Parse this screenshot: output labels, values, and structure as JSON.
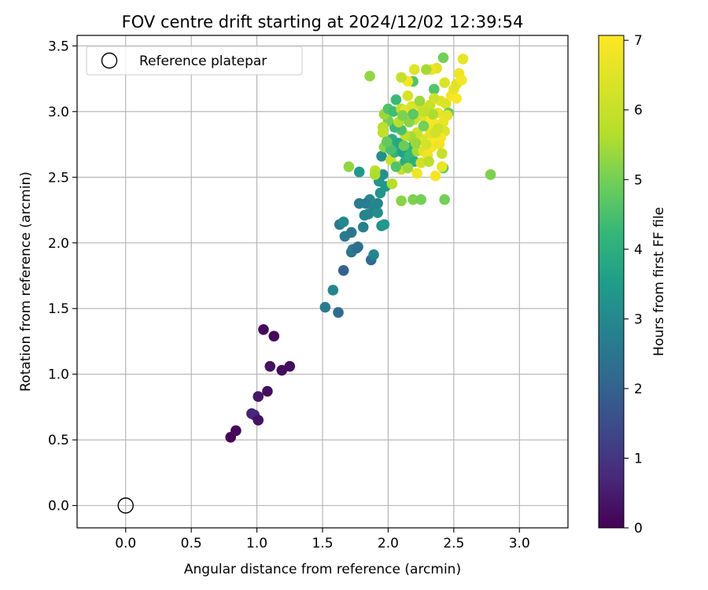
{
  "chart_data": {
    "type": "scatter",
    "title": "FOV centre drift starting at 2024/12/02 12:39:54",
    "xlabel": "Angular distance from reference (arcmin)",
    "ylabel": "Rotation from reference (arcmin)",
    "xlim": [
      -0.37,
      3.37
    ],
    "ylim": [
      -0.17,
      3.58
    ],
    "xticks": [
      "0.0",
      "0.5",
      "1.0",
      "1.5",
      "2.0",
      "2.5",
      "3.0"
    ],
    "yticks": [
      "0.0",
      "0.5",
      "1.0",
      "1.5",
      "2.0",
      "2.5",
      "3.0",
      "3.5"
    ],
    "grid": true,
    "legend": {
      "placement": "upper-left",
      "label": "Reference platepar"
    },
    "reference_point": {
      "x": 0.0,
      "y": 0.0
    },
    "colorbar": {
      "label": "Hours from first FF file",
      "colormap": "viridis",
      "range": [
        0,
        7.07
      ],
      "ticks": [
        "0",
        "1",
        "2",
        "3",
        "4",
        "5",
        "6",
        "7"
      ]
    },
    "points": [
      {
        "x": 0.8,
        "y": 0.52,
        "c": 0.05
      },
      {
        "x": 0.84,
        "y": 0.57,
        "c": 0.1
      },
      {
        "x": 0.96,
        "y": 0.7,
        "c": 0.6
      },
      {
        "x": 0.98,
        "y": 0.69,
        "c": 0.7
      },
      {
        "x": 1.01,
        "y": 0.65,
        "c": 0.3
      },
      {
        "x": 1.01,
        "y": 0.83,
        "c": 0.4
      },
      {
        "x": 1.08,
        "y": 0.87,
        "c": 0.2
      },
      {
        "x": 1.1,
        "y": 1.06,
        "c": 0.3
      },
      {
        "x": 1.19,
        "y": 1.03,
        "c": 0.2
      },
      {
        "x": 1.25,
        "y": 1.06,
        "c": 0.2
      },
      {
        "x": 1.05,
        "y": 1.34,
        "c": 0.15
      },
      {
        "x": 1.13,
        "y": 1.29,
        "c": 0.15
      },
      {
        "x": 1.52,
        "y": 1.51,
        "c": 2.6
      },
      {
        "x": 1.62,
        "y": 1.47,
        "c": 2.2
      },
      {
        "x": 1.58,
        "y": 1.64,
        "c": 2.9
      },
      {
        "x": 1.66,
        "y": 1.79,
        "c": 2.0
      },
      {
        "x": 1.67,
        "y": 2.05,
        "c": 2.6
      },
      {
        "x": 1.63,
        "y": 2.14,
        "c": 2.6
      },
      {
        "x": 1.66,
        "y": 2.16,
        "c": 3.0
      },
      {
        "x": 1.72,
        "y": 2.08,
        "c": 2.5
      },
      {
        "x": 1.72,
        "y": 1.93,
        "c": 2.4
      },
      {
        "x": 1.73,
        "y": 1.95,
        "c": 2.6
      },
      {
        "x": 1.76,
        "y": 1.96,
        "c": 2.2
      },
      {
        "x": 1.77,
        "y": 1.97,
        "c": 2.3
      },
      {
        "x": 1.87,
        "y": 1.87,
        "c": 2.2
      },
      {
        "x": 1.89,
        "y": 1.91,
        "c": 2.9
      },
      {
        "x": 1.81,
        "y": 2.12,
        "c": 2.8
      },
      {
        "x": 1.78,
        "y": 2.3,
        "c": 2.7
      },
      {
        "x": 1.82,
        "y": 2.21,
        "c": 2.9
      },
      {
        "x": 1.85,
        "y": 2.22,
        "c": 2.9
      },
      {
        "x": 1.86,
        "y": 2.33,
        "c": 3.0
      },
      {
        "x": 1.83,
        "y": 2.3,
        "c": 2.7
      },
      {
        "x": 1.89,
        "y": 2.26,
        "c": 2.9
      },
      {
        "x": 1.92,
        "y": 2.23,
        "c": 3.1
      },
      {
        "x": 1.95,
        "y": 2.13,
        "c": 3.1
      },
      {
        "x": 1.97,
        "y": 2.14,
        "c": 3.4
      },
      {
        "x": 1.92,
        "y": 2.3,
        "c": 2.9
      },
      {
        "x": 1.94,
        "y": 2.38,
        "c": 3.3
      },
      {
        "x": 1.93,
        "y": 2.47,
        "c": 3.3
      },
      {
        "x": 1.98,
        "y": 2.43,
        "c": 3.4
      },
      {
        "x": 1.96,
        "y": 2.52,
        "c": 3.2
      },
      {
        "x": 1.95,
        "y": 2.66,
        "c": 3.2
      },
      {
        "x": 1.78,
        "y": 2.54,
        "c": 3.4
      },
      {
        "x": 1.7,
        "y": 2.58,
        "c": 5.3
      },
      {
        "x": 1.9,
        "y": 2.55,
        "c": 5.8
      },
      {
        "x": 1.9,
        "y": 2.52,
        "c": 5.6
      },
      {
        "x": 2.03,
        "y": 2.45,
        "c": 5.7
      },
      {
        "x": 2.1,
        "y": 2.32,
        "c": 5.2
      },
      {
        "x": 2.19,
        "y": 2.33,
        "c": 5.1
      },
      {
        "x": 2.25,
        "y": 2.33,
        "c": 5.0
      },
      {
        "x": 2.43,
        "y": 2.33,
        "c": 5.0
      },
      {
        "x": 2.78,
        "y": 2.52,
        "c": 5.1
      },
      {
        "x": 2.42,
        "y": 2.57,
        "c": 4.6
      },
      {
        "x": 2.41,
        "y": 2.58,
        "c": 6.7
      },
      {
        "x": 2.36,
        "y": 2.51,
        "c": 6.9
      },
      {
        "x": 2.22,
        "y": 2.53,
        "c": 6.8
      },
      {
        "x": 2.1,
        "y": 2.56,
        "c": 5.9
      },
      {
        "x": 2.1,
        "y": 2.59,
        "c": 6.2
      },
      {
        "x": 2.02,
        "y": 2.63,
        "c": 6.0
      },
      {
        "x": 2.05,
        "y": 2.69,
        "c": 4.1
      },
      {
        "x": 2.01,
        "y": 2.73,
        "c": 3.9
      },
      {
        "x": 1.97,
        "y": 2.73,
        "c": 5.2
      },
      {
        "x": 2.03,
        "y": 2.79,
        "c": 4.0
      },
      {
        "x": 2.08,
        "y": 2.76,
        "c": 3.8
      },
      {
        "x": 2.11,
        "y": 2.69,
        "c": 3.6
      },
      {
        "x": 2.13,
        "y": 2.62,
        "c": 3.9
      },
      {
        "x": 2.16,
        "y": 2.66,
        "c": 4.2
      },
      {
        "x": 2.18,
        "y": 2.73,
        "c": 4.1
      },
      {
        "x": 2.2,
        "y": 2.62,
        "c": 4.0
      },
      {
        "x": 2.22,
        "y": 2.7,
        "c": 5.5
      },
      {
        "x": 2.25,
        "y": 2.61,
        "c": 6.2
      },
      {
        "x": 2.27,
        "y": 2.7,
        "c": 6.5
      },
      {
        "x": 2.3,
        "y": 2.67,
        "c": 6.8
      },
      {
        "x": 2.33,
        "y": 2.73,
        "c": 6.9
      },
      {
        "x": 2.35,
        "y": 2.79,
        "c": 7.0
      },
      {
        "x": 2.39,
        "y": 2.75,
        "c": 6.8
      },
      {
        "x": 2.43,
        "y": 2.85,
        "c": 6.5
      },
      {
        "x": 2.4,
        "y": 2.8,
        "c": 6.9
      },
      {
        "x": 2.32,
        "y": 2.83,
        "c": 6.6
      },
      {
        "x": 2.26,
        "y": 2.79,
        "c": 6.4
      },
      {
        "x": 2.22,
        "y": 2.84,
        "c": 6.1
      },
      {
        "x": 2.17,
        "y": 2.81,
        "c": 5.5
      },
      {
        "x": 2.13,
        "y": 2.82,
        "c": 5.8
      },
      {
        "x": 2.1,
        "y": 2.86,
        "c": 4.5
      },
      {
        "x": 2.05,
        "y": 2.88,
        "c": 4.3
      },
      {
        "x": 2.0,
        "y": 2.93,
        "c": 5.0
      },
      {
        "x": 1.96,
        "y": 2.88,
        "c": 5.8
      },
      {
        "x": 1.96,
        "y": 2.84,
        "c": 5.9
      },
      {
        "x": 1.97,
        "y": 2.98,
        "c": 5.4
      },
      {
        "x": 2.0,
        "y": 3.02,
        "c": 4.6
      },
      {
        "x": 2.04,
        "y": 3.0,
        "c": 4.4
      },
      {
        "x": 2.06,
        "y": 3.09,
        "c": 4.3
      },
      {
        "x": 2.1,
        "y": 3.02,
        "c": 5.9
      },
      {
        "x": 2.13,
        "y": 3.01,
        "c": 6.6
      },
      {
        "x": 2.15,
        "y": 3.12,
        "c": 6.3
      },
      {
        "x": 2.18,
        "y": 3.04,
        "c": 6.4
      },
      {
        "x": 2.2,
        "y": 2.94,
        "c": 6.0
      },
      {
        "x": 2.23,
        "y": 2.97,
        "c": 6.1
      },
      {
        "x": 2.25,
        "y": 3.04,
        "c": 6.3
      },
      {
        "x": 2.28,
        "y": 2.95,
        "c": 6.5
      },
      {
        "x": 2.3,
        "y": 2.9,
        "c": 6.8
      },
      {
        "x": 2.33,
        "y": 2.94,
        "c": 7.0
      },
      {
        "x": 2.36,
        "y": 2.9,
        "c": 6.9
      },
      {
        "x": 2.38,
        "y": 2.99,
        "c": 6.7
      },
      {
        "x": 2.4,
        "y": 3.08,
        "c": 6.5
      },
      {
        "x": 2.44,
        "y": 3.06,
        "c": 6.4
      },
      {
        "x": 2.46,
        "y": 2.99,
        "c": 4.9
      },
      {
        "x": 2.45,
        "y": 2.97,
        "c": 6.6
      },
      {
        "x": 2.42,
        "y": 2.92,
        "c": 6.7
      },
      {
        "x": 2.48,
        "y": 3.12,
        "c": 6.9
      },
      {
        "x": 2.52,
        "y": 3.1,
        "c": 7.0
      },
      {
        "x": 2.5,
        "y": 3.17,
        "c": 6.6
      },
      {
        "x": 2.52,
        "y": 3.21,
        "c": 6.5
      },
      {
        "x": 2.54,
        "y": 3.29,
        "c": 6.8
      },
      {
        "x": 2.56,
        "y": 3.24,
        "c": 6.9
      },
      {
        "x": 2.57,
        "y": 3.4,
        "c": 6.6
      },
      {
        "x": 2.42,
        "y": 3.41,
        "c": 5.0
      },
      {
        "x": 2.43,
        "y": 3.22,
        "c": 6.4
      },
      {
        "x": 2.35,
        "y": 3.17,
        "c": 4.6
      },
      {
        "x": 2.37,
        "y": 3.33,
        "c": 6.5
      },
      {
        "x": 2.33,
        "y": 3.32,
        "c": 6.8
      },
      {
        "x": 2.29,
        "y": 3.32,
        "c": 5.5
      },
      {
        "x": 2.2,
        "y": 3.32,
        "c": 6.5
      },
      {
        "x": 2.19,
        "y": 3.23,
        "c": 4.6
      },
      {
        "x": 2.15,
        "y": 3.23,
        "c": 6.9
      },
      {
        "x": 2.1,
        "y": 3.26,
        "c": 6.0
      },
      {
        "x": 1.86,
        "y": 3.27,
        "c": 5.3
      },
      {
        "x": 2.32,
        "y": 3.05,
        "c": 6.0
      },
      {
        "x": 2.34,
        "y": 2.98,
        "c": 5.6
      },
      {
        "x": 2.38,
        "y": 2.87,
        "c": 6.1
      },
      {
        "x": 2.27,
        "y": 2.89,
        "c": 5.0
      },
      {
        "x": 2.21,
        "y": 2.76,
        "c": 5.4
      },
      {
        "x": 2.12,
        "y": 2.74,
        "c": 4.9
      },
      {
        "x": 2.08,
        "y": 2.92,
        "c": 5.7
      },
      {
        "x": 2.16,
        "y": 2.92,
        "c": 5.2
      },
      {
        "x": 2.24,
        "y": 3.08,
        "c": 5.4
      },
      {
        "x": 2.29,
        "y": 2.75,
        "c": 6.3
      },
      {
        "x": 2.36,
        "y": 2.84,
        "c": 6.2
      },
      {
        "x": 2.31,
        "y": 2.62,
        "c": 5.8
      },
      {
        "x": 2.41,
        "y": 2.68,
        "c": 6.0
      },
      {
        "x": 2.02,
        "y": 2.71,
        "c": 4.5
      },
      {
        "x": 2.06,
        "y": 2.58,
        "c": 4.6
      },
      {
        "x": 2.15,
        "y": 2.57,
        "c": 5.4
      },
      {
        "x": 1.99,
        "y": 2.77,
        "c": 4.8
      },
      {
        "x": 2.11,
        "y": 2.97,
        "c": 5.1
      },
      {
        "x": 2.27,
        "y": 3.0,
        "c": 5.9
      },
      {
        "x": 2.19,
        "y": 2.98,
        "c": 4.7
      },
      {
        "x": 2.35,
        "y": 3.1,
        "c": 6.2
      }
    ]
  }
}
